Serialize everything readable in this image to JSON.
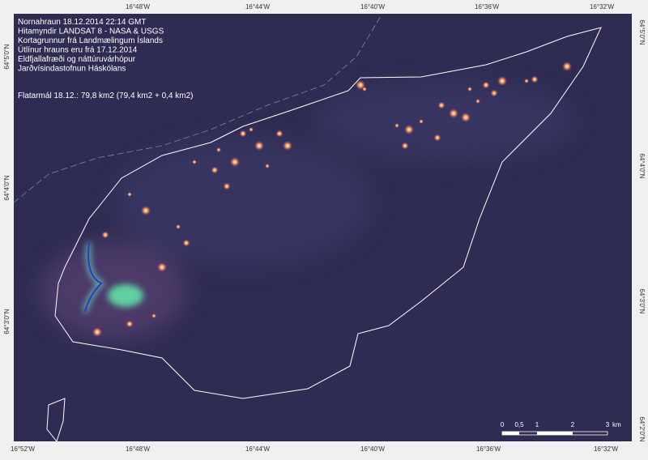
{
  "header": {
    "lines": [
      "Nornahraun 18.12.2014  22:14 GMT",
      "Hitamyndir LANDSAT 8  - NASA & USGS",
      "Kortagrunnur frá Landmælingum Íslands",
      "Útlínur hrauns eru frá 17.12.2014",
      "Eldfjallafræði og náttúruvárhópur",
      "Jarðvísindastofnun Háskólans"
    ],
    "area": "Flatarmál 18.12.: 79,8 km2  (79,4 km2 + 0,4 km2)"
  },
  "coordinates": {
    "top": [
      "16°48'W",
      "16°44'W",
      "16°40'W",
      "16°36'W",
      "16°32'W"
    ],
    "bottom": [
      "16°52'W",
      "16°48'W",
      "16°44'W",
      "16°40'W",
      "16°36'W",
      "16°32'W"
    ],
    "left": [
      "64°5'0\"N",
      "64°4'0\"N",
      "64°3'0\"N"
    ],
    "right": [
      "64°5'0\"N",
      "64°4'0\"N",
      "64°3'0\"N",
      "64°2'0\"N"
    ]
  },
  "scale_bar": {
    "labels": [
      "0",
      "0,5",
      "1",
      "2",
      "3"
    ],
    "unit": "km"
  }
}
